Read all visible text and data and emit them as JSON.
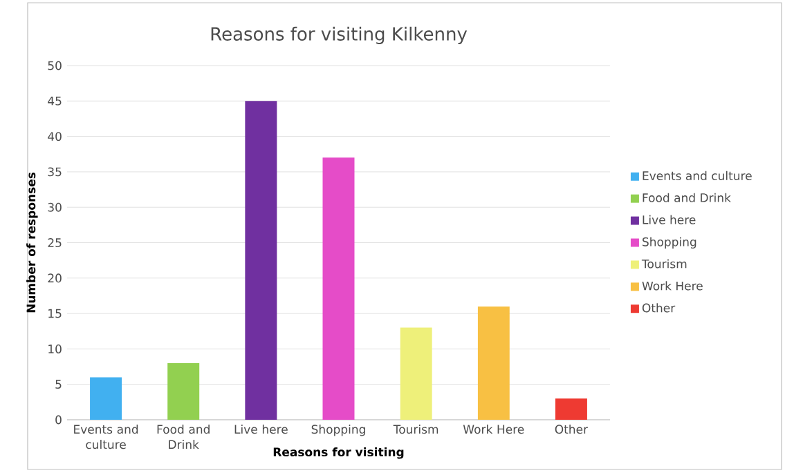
{
  "chart_data": {
    "type": "bar",
    "title": "Reasons for visiting Kilkenny",
    "xlabel": "Reasons for visiting",
    "ylabel": "Number of responses",
    "categories": [
      "Events and culture",
      "Food and Drink",
      "Live here",
      "Shopping",
      "Tourism",
      "Work Here",
      "Other"
    ],
    "series": [
      {
        "name": "Events and culture",
        "color": "#41b0f0",
        "values": [
          6,
          null,
          null,
          null,
          null,
          null,
          null
        ]
      },
      {
        "name": "Food and Drink",
        "color": "#92d050",
        "values": [
          null,
          8,
          null,
          null,
          null,
          null,
          null
        ]
      },
      {
        "name": "Live here",
        "color": "#7030a0",
        "values": [
          null,
          null,
          45,
          null,
          null,
          null,
          null
        ]
      },
      {
        "name": "Shopping",
        "color": "#e54cc8",
        "values": [
          null,
          null,
          null,
          37,
          null,
          null,
          null
        ]
      },
      {
        "name": "Tourism",
        "color": "#eef07a",
        "values": [
          null,
          null,
          null,
          null,
          13,
          null,
          null
        ]
      },
      {
        "name": "Work Here",
        "color": "#f8c043",
        "values": [
          null,
          null,
          null,
          null,
          null,
          16,
          null
        ]
      },
      {
        "name": "Other",
        "color": "#ee3a32",
        "values": [
          null,
          null,
          null,
          null,
          null,
          null,
          3
        ]
      }
    ],
    "ylim": [
      0,
      50
    ],
    "yticks": [
      0,
      5,
      10,
      15,
      20,
      25,
      30,
      35,
      40,
      45,
      50
    ],
    "grid": "y",
    "legend": "right"
  }
}
